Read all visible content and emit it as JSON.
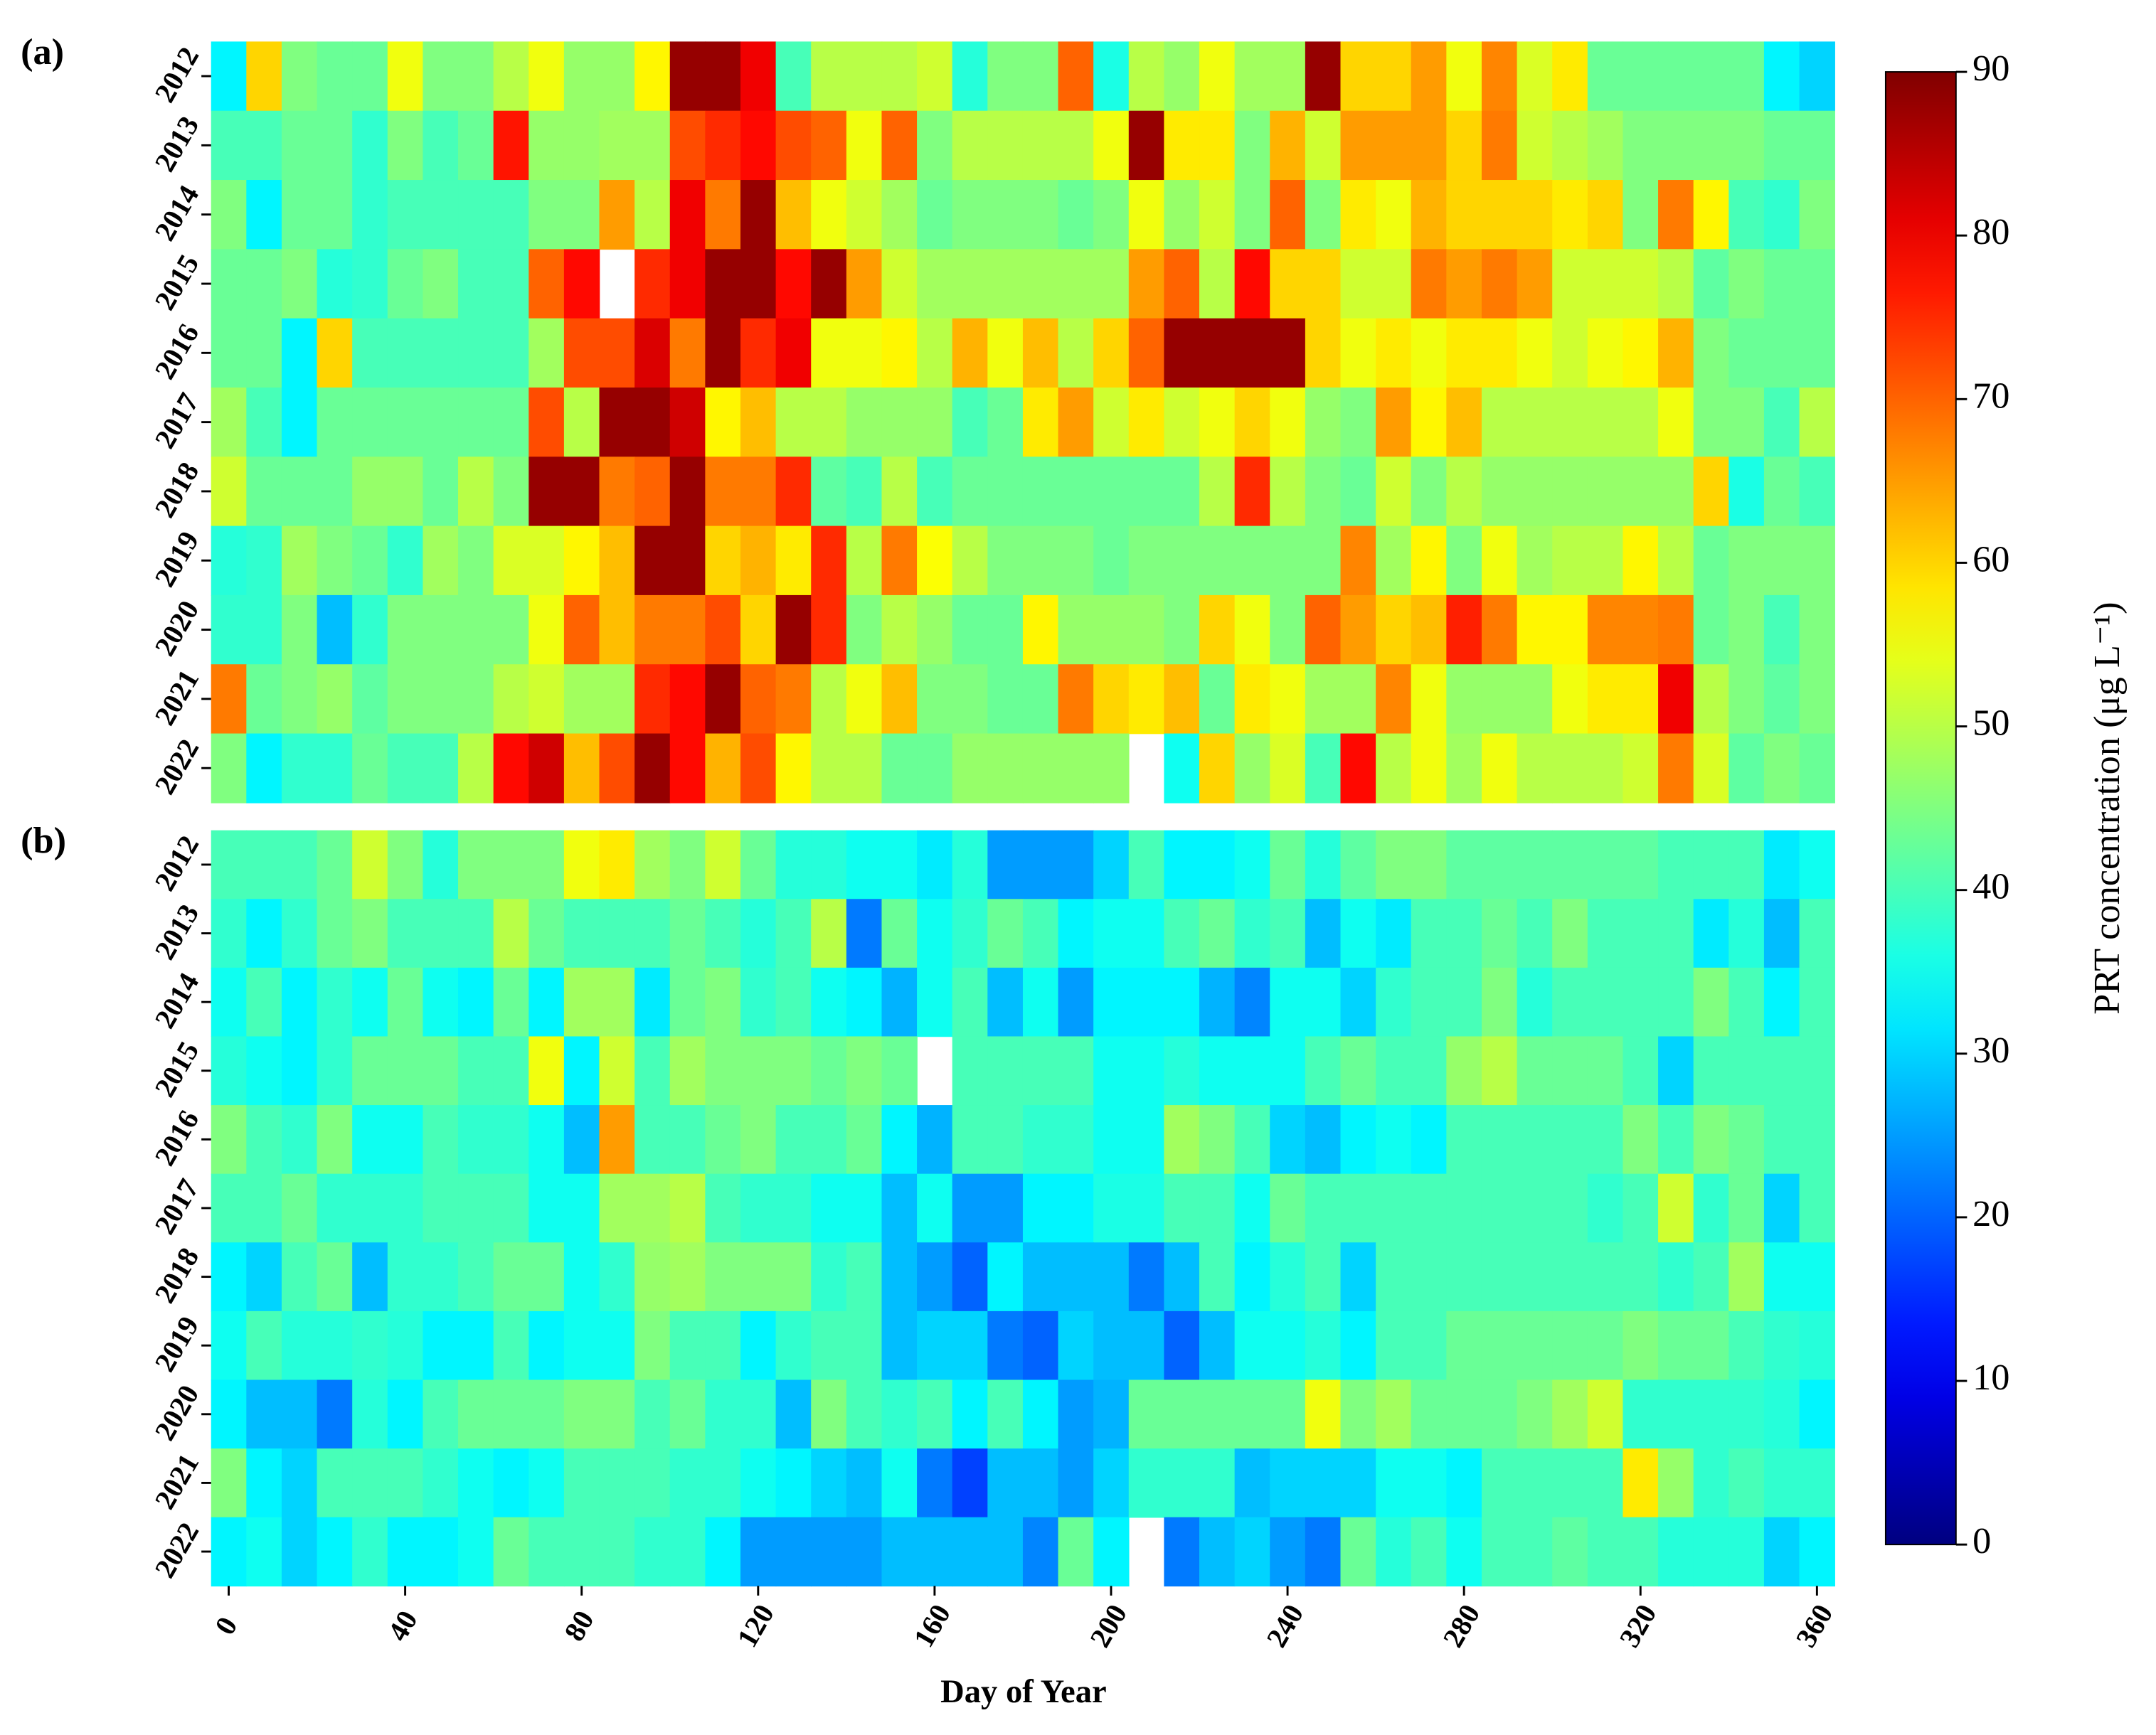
{
  "chart_data": {
    "type": "heatmap",
    "xlabel": "Day of Year",
    "x": [
      0,
      8,
      16,
      24,
      32,
      40,
      48,
      56,
      64,
      72,
      80,
      88,
      96,
      104,
      112,
      120,
      128,
      136,
      144,
      152,
      160,
      168,
      176,
      184,
      192,
      200,
      208,
      216,
      224,
      232,
      240,
      248,
      256,
      264,
      272,
      280,
      288,
      296,
      304,
      312,
      320,
      328,
      336,
      344,
      352,
      360
    ],
    "xlim": [
      -4,
      364
    ],
    "xticks": [
      0,
      40,
      80,
      120,
      160,
      200,
      240,
      280,
      320,
      360
    ],
    "colorbar": {
      "label": "PRT concentration (μg L⁻¹)",
      "colormap": "jet",
      "lim": [
        0,
        90
      ],
      "ticks": [
        0,
        10,
        20,
        30,
        40,
        50,
        60,
        70,
        80,
        90
      ]
    },
    "panels": [
      {
        "label": "(a)",
        "rows": [
          "2012",
          "2013",
          "2014",
          "2015",
          "2016",
          "2017",
          "2018",
          "2019",
          "2020",
          "2021",
          "2022"
        ],
        "values": [
          [
            33,
            60,
            45,
            43,
            43,
            55,
            45,
            45,
            50,
            55,
            47,
            47,
            57,
            88,
            88,
            80,
            40,
            50,
            50,
            50,
            52,
            37,
            45,
            45,
            70,
            36,
            50,
            47,
            55,
            48,
            48,
            88,
            60,
            60,
            65,
            55,
            67,
            53,
            58,
            43,
            43,
            43,
            43,
            43,
            33,
            30
          ],
          [
            40,
            40,
            43,
            43,
            38,
            45,
            40,
            43,
            77,
            47,
            47,
            48,
            48,
            72,
            75,
            78,
            72,
            70,
            55,
            70,
            45,
            50,
            50,
            50,
            50,
            55,
            88,
            58,
            58,
            45,
            63,
            52,
            65,
            65,
            65,
            60,
            68,
            52,
            50,
            48,
            45,
            45,
            45,
            45,
            43,
            43
          ],
          [
            45,
            33,
            43,
            43,
            38,
            40,
            40,
            40,
            40,
            45,
            45,
            65,
            50,
            80,
            68,
            88,
            62,
            55,
            52,
            48,
            43,
            45,
            45,
            45,
            43,
            45,
            55,
            47,
            52,
            45,
            70,
            45,
            58,
            55,
            63,
            60,
            60,
            60,
            58,
            60,
            45,
            68,
            57,
            40,
            38,
            45
          ],
          [
            43,
            43,
            45,
            37,
            38,
            43,
            45,
            40,
            40,
            70,
            78,
            null,
            75,
            80,
            88,
            88,
            78,
            88,
            65,
            52,
            48,
            48,
            48,
            48,
            48,
            48,
            65,
            70,
            50,
            78,
            60,
            60,
            52,
            52,
            68,
            65,
            68,
            65,
            52,
            52,
            52,
            50,
            42,
            45,
            43,
            43
          ],
          [
            43,
            43,
            33,
            60,
            40,
            40,
            40,
            40,
            40,
            48,
            72,
            72,
            82,
            68,
            88,
            75,
            80,
            55,
            55,
            57,
            50,
            63,
            55,
            62,
            50,
            60,
            70,
            88,
            88,
            88,
            88,
            60,
            55,
            58,
            55,
            58,
            58,
            55,
            52,
            55,
            57,
            63,
            45,
            43,
            43,
            43
          ],
          [
            48,
            40,
            33,
            43,
            43,
            43,
            43,
            43,
            43,
            72,
            50,
            88,
            88,
            83,
            57,
            62,
            50,
            50,
            47,
            47,
            47,
            40,
            43,
            58,
            65,
            52,
            58,
            52,
            55,
            60,
            55,
            47,
            45,
            65,
            57,
            62,
            50,
            50,
            50,
            50,
            50,
            55,
            45,
            45,
            40,
            50
          ],
          [
            52,
            43,
            43,
            43,
            47,
            47,
            43,
            50,
            45,
            88,
            88,
            68,
            70,
            88,
            68,
            68,
            75,
            42,
            40,
            50,
            40,
            43,
            43,
            43,
            43,
            43,
            43,
            43,
            50,
            75,
            50,
            45,
            43,
            52,
            45,
            50,
            47,
            47,
            47,
            47,
            47,
            47,
            60,
            36,
            43,
            40
          ],
          [
            37,
            38,
            48,
            45,
            43,
            38,
            48,
            45,
            53,
            53,
            57,
            62,
            88,
            88,
            60,
            63,
            58,
            75,
            50,
            68,
            56,
            50,
            45,
            45,
            45,
            43,
            45,
            45,
            45,
            45,
            45,
            45,
            67,
            48,
            57,
            45,
            55,
            48,
            50,
            50,
            57,
            50,
            43,
            45,
            45,
            45
          ],
          [
            38,
            38,
            45,
            28,
            38,
            45,
            45,
            45,
            45,
            55,
            70,
            62,
            68,
            68,
            72,
            60,
            88,
            75,
            45,
            50,
            47,
            43,
            43,
            57,
            47,
            47,
            47,
            45,
            60,
            55,
            45,
            70,
            65,
            60,
            62,
            76,
            68,
            57,
            57,
            67,
            67,
            68,
            43,
            45,
            40,
            45
          ],
          [
            68,
            43,
            45,
            47,
            42,
            45,
            45,
            45,
            50,
            52,
            48,
            48,
            75,
            78,
            88,
            70,
            68,
            50,
            55,
            62,
            45,
            45,
            43,
            43,
            68,
            60,
            58,
            62,
            43,
            58,
            55,
            48,
            48,
            67,
            55,
            47,
            47,
            47,
            55,
            58,
            58,
            80,
            50,
            45,
            42,
            45
          ],
          [
            45,
            33,
            38,
            38,
            43,
            40,
            40,
            50,
            78,
            83,
            62,
            72,
            88,
            78,
            63,
            72,
            57,
            50,
            50,
            43,
            43,
            47,
            47,
            47,
            47,
            47,
            null,
            35,
            60,
            47,
            53,
            40,
            78,
            50,
            55,
            48,
            55,
            50,
            50,
            50,
            52,
            68,
            53,
            42,
            45,
            43
          ]
        ]
      },
      {
        "label": "(b)",
        "rows": [
          "2012",
          "2013",
          "2014",
          "2015",
          "2016",
          "2017",
          "2018",
          "2019",
          "2020",
          "2021",
          "2022"
        ],
        "values": [
          [
            40,
            40,
            40,
            43,
            52,
            45,
            37,
            45,
            45,
            45,
            55,
            58,
            48,
            45,
            52,
            43,
            37,
            37,
            35,
            35,
            32,
            37,
            25,
            25,
            25,
            30,
            40,
            33,
            33,
            35,
            43,
            37,
            42,
            45,
            45,
            42,
            42,
            42,
            42,
            42,
            42,
            40,
            40,
            40,
            32,
            35
          ],
          [
            38,
            33,
            38,
            43,
            45,
            40,
            40,
            40,
            50,
            43,
            40,
            40,
            40,
            43,
            40,
            37,
            40,
            50,
            22,
            43,
            35,
            38,
            43,
            40,
            33,
            35,
            35,
            40,
            43,
            38,
            40,
            28,
            35,
            32,
            40,
            40,
            43,
            40,
            45,
            40,
            40,
            40,
            32,
            37,
            28,
            40
          ],
          [
            35,
            40,
            33,
            38,
            35,
            43,
            35,
            33,
            43,
            33,
            48,
            48,
            32,
            43,
            45,
            38,
            40,
            35,
            33,
            27,
            35,
            40,
            28,
            35,
            25,
            33,
            33,
            33,
            27,
            23,
            35,
            35,
            30,
            38,
            40,
            40,
            45,
            37,
            40,
            40,
            40,
            40,
            45,
            40,
            33,
            40
          ],
          [
            37,
            35,
            33,
            38,
            43,
            43,
            43,
            40,
            40,
            55,
            33,
            52,
            40,
            48,
            45,
            45,
            45,
            43,
            45,
            43,
            null,
            40,
            40,
            40,
            40,
            35,
            35,
            37,
            35,
            35,
            35,
            40,
            43,
            40,
            40,
            47,
            50,
            43,
            43,
            43,
            40,
            30,
            40,
            40,
            40,
            40
          ],
          [
            45,
            40,
            38,
            45,
            35,
            35,
            40,
            38,
            38,
            35,
            28,
            65,
            40,
            40,
            43,
            45,
            40,
            40,
            43,
            33,
            27,
            40,
            40,
            38,
            38,
            35,
            35,
            48,
            45,
            40,
            30,
            28,
            33,
            35,
            33,
            40,
            40,
            40,
            40,
            40,
            45,
            40,
            45,
            43,
            40,
            40
          ],
          [
            40,
            40,
            43,
            38,
            38,
            38,
            40,
            40,
            40,
            35,
            35,
            48,
            48,
            50,
            40,
            38,
            38,
            35,
            35,
            28,
            35,
            25,
            25,
            33,
            33,
            36,
            36,
            40,
            40,
            35,
            43,
            40,
            40,
            40,
            40,
            40,
            40,
            40,
            40,
            38,
            40,
            52,
            38,
            43,
            30,
            40
          ],
          [
            33,
            30,
            40,
            43,
            28,
            38,
            38,
            40,
            43,
            43,
            35,
            38,
            47,
            48,
            45,
            45,
            45,
            38,
            40,
            28,
            25,
            20,
            33,
            28,
            28,
            28,
            22,
            28,
            40,
            33,
            37,
            40,
            30,
            40,
            40,
            40,
            40,
            40,
            40,
            40,
            40,
            38,
            40,
            48,
            35,
            35
          ],
          [
            35,
            40,
            37,
            37,
            38,
            37,
            33,
            33,
            40,
            33,
            35,
            35,
            45,
            40,
            40,
            33,
            38,
            40,
            40,
            28,
            30,
            30,
            22,
            20,
            30,
            28,
            28,
            20,
            28,
            35,
            35,
            37,
            33,
            40,
            40,
            43,
            43,
            43,
            43,
            43,
            45,
            43,
            43,
            40,
            38,
            37
          ],
          [
            33,
            28,
            28,
            22,
            37,
            33,
            40,
            43,
            43,
            43,
            45,
            45,
            40,
            43,
            38,
            38,
            28,
            45,
            40,
            38,
            40,
            33,
            40,
            33,
            25,
            27,
            43,
            43,
            43,
            43,
            43,
            55,
            45,
            48,
            43,
            43,
            43,
            45,
            48,
            52,
            38,
            38,
            38,
            38,
            37,
            33
          ],
          [
            45,
            33,
            30,
            40,
            40,
            40,
            38,
            35,
            33,
            35,
            40,
            40,
            40,
            38,
            38,
            35,
            33,
            30,
            28,
            35,
            22,
            17,
            28,
            28,
            25,
            30,
            38,
            38,
            38,
            28,
            30,
            30,
            30,
            35,
            35,
            33,
            40,
            40,
            40,
            40,
            58,
            47,
            38,
            40,
            38,
            38
          ],
          [
            33,
            35,
            30,
            33,
            38,
            33,
            33,
            35,
            43,
            40,
            40,
            40,
            38,
            38,
            33,
            25,
            25,
            25,
            25,
            28,
            28,
            28,
            28,
            23,
            43,
            33,
            null,
            22,
            28,
            30,
            25,
            22,
            43,
            37,
            40,
            35,
            40,
            40,
            42,
            40,
            40,
            37,
            37,
            37,
            30,
            33
          ]
        ]
      }
    ]
  }
}
